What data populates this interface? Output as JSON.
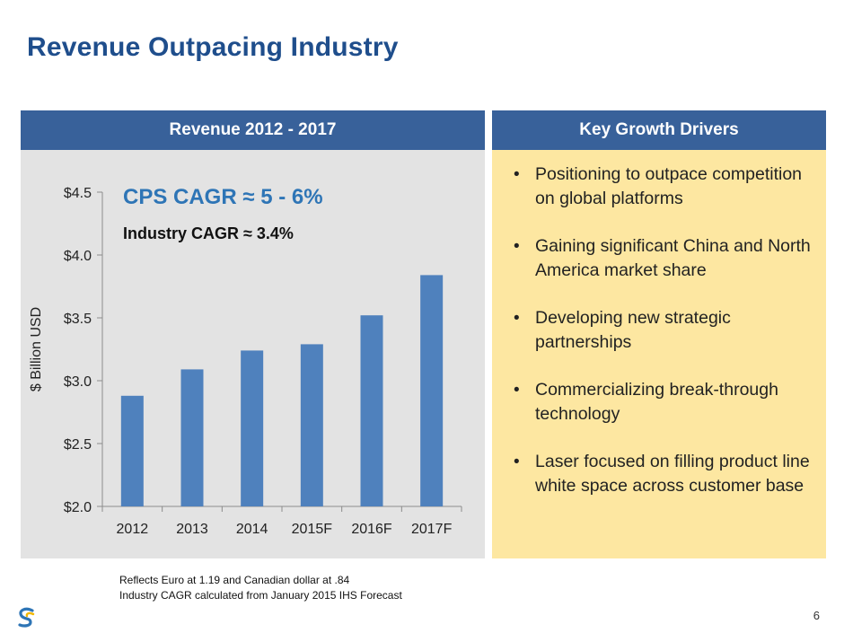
{
  "title": "Revenue Outpacing Industry",
  "left_panel": {
    "header": "Revenue 2012 - 2017"
  },
  "right_panel": {
    "header": "Key Growth Drivers",
    "bullets": [
      "Positioning to outpace competition on global platforms",
      "Gaining significant China and North America market share",
      "Developing new strategic partnerships",
      "Commercializing break-through technology",
      "Laser focused on filling product line white space across customer base"
    ]
  },
  "footnotes": [
    "Reflects Euro at 1.19 and  Canadian dollar at .84",
    "Industry CAGR calculated from January 2015 IHS Forecast"
  ],
  "page_number": "6",
  "colors": {
    "title": "#1f4e8c",
    "header_bg": "#38619a",
    "bar": "#4f81bd",
    "left_bg": "#e3e3e3",
    "right_bg": "#fde7a1",
    "cagr_text": "#2e75b6"
  },
  "chart_data": {
    "type": "bar",
    "categories": [
      "2012",
      "2013",
      "2014",
      "2015F",
      "2016F",
      "2017F"
    ],
    "values": [
      2.88,
      3.09,
      3.24,
      3.29,
      3.52,
      3.84
    ],
    "ylabel": "$ Billion USD",
    "ylim": [
      2.0,
      4.5
    ],
    "yticks": [
      2.0,
      2.5,
      3.0,
      3.5,
      4.0,
      4.5
    ],
    "ytick_labels": [
      "$2.0",
      "$2.5",
      "$3.0",
      "$3.5",
      "$4.0",
      "$4.5"
    ],
    "grid": false,
    "annotations": [
      "CPS CAGR ≈ 5 - 6%",
      "Industry CAGR ≈ 3.4%"
    ]
  }
}
